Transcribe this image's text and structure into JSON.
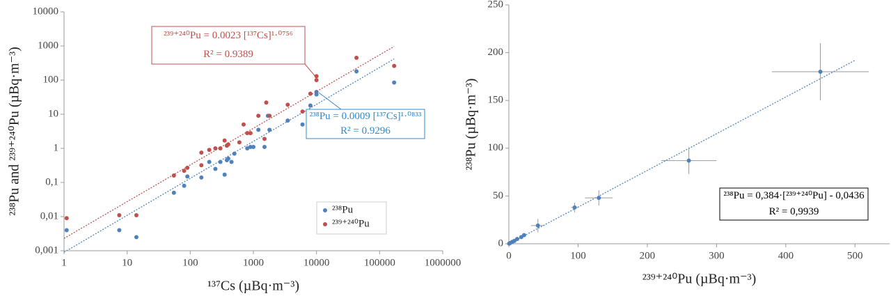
{
  "chart_data": [
    {
      "type": "scatter",
      "xscale": "log",
      "yscale": "log",
      "x_label": "¹³⁷Cs (µBq·m⁻³)",
      "y_label": "²³⁸Pu and ²³⁹⁺²⁴⁰Pu (µBq·m⁻³)",
      "xlim": [
        1,
        1000000
      ],
      "xticks": [
        1,
        10,
        100,
        1000,
        10000,
        100000,
        1000000
      ],
      "ylim": [
        0.001,
        10000
      ],
      "yticks": [
        {
          "value": 0.001,
          "label": "0,001"
        },
        {
          "value": 0.01,
          "label": "0,01"
        },
        {
          "value": 0.1,
          "label": "0,1"
        },
        1,
        10,
        100,
        1000,
        10000
      ],
      "legend": "lower right",
      "series": [
        {
          "name": "²³⁸Pu",
          "color": "#4f81bd",
          "x": [
            1.1,
            7.5,
            14,
            55,
            80,
            90,
            150,
            200,
            250,
            300,
            350,
            380,
            400,
            450,
            500,
            800,
            900,
            1000,
            1200,
            1500,
            1800,
            1700,
            3500,
            6000,
            8000,
            10000,
            10000,
            43000,
            170000
          ],
          "values": [
            0.004,
            0.004,
            0.0025,
            0.05,
            0.08,
            0.15,
            0.14,
            0.4,
            0.25,
            0.4,
            0.17,
            0.45,
            0.5,
            0.4,
            0.7,
            1.0,
            1.1,
            1.1,
            3.5,
            1.1,
            3.5,
            9,
            6.5,
            5,
            18,
            45,
            38,
            180,
            85
          ],
          "trendline": {
            "type": "power",
            "coef": 0.0009,
            "exp": 1.0833
          }
        },
        {
          "name": "²³⁹⁺²⁴⁰Pu",
          "color": "#c0504d",
          "x": [
            1.1,
            7.5,
            14,
            55,
            80,
            90,
            150,
            150,
            200,
            250,
            300,
            350,
            380,
            400,
            600,
            700,
            800,
            900,
            1200,
            1500,
            1600,
            1800,
            3500,
            6000,
            8000,
            10000,
            10000,
            43000,
            170000
          ],
          "values": [
            0.009,
            0.011,
            0.011,
            0.16,
            0.22,
            0.27,
            0.75,
            0.32,
            0.9,
            1.0,
            1.0,
            1.7,
            1.2,
            1.3,
            1.5,
            5,
            2.8,
            2.8,
            9,
            1.9,
            22,
            9,
            19,
            12,
            40,
            130,
            100,
            450,
            260
          ],
          "trendline": {
            "type": "power",
            "coef": 0.0023,
            "exp": 1.0756
          }
        }
      ],
      "annotations": [
        {
          "lines": [
            "²³⁹⁺²⁴⁰Pu = 0.0023 [¹³⁷Cs]¹·⁰⁷⁵⁶",
            "R² = 0.9389"
          ],
          "color": "#c0504d"
        },
        {
          "lines": [
            "²³⁸Pu = 0.0009 [¹³⁷Cs]¹·⁰⁸³³",
            "R² = 0.9296"
          ],
          "color": "#2e8bd0"
        }
      ]
    },
    {
      "type": "scatter",
      "x_label": "²³⁹⁺²⁴⁰Pu (µBq·m⁻³)",
      "y_label": "²³⁸Pu (µBq·m⁻³)",
      "xlim": [
        0,
        550
      ],
      "xticks": [
        0,
        100,
        200,
        300,
        400,
        500
      ],
      "ylim": [
        0,
        250
      ],
      "yticks": [
        0,
        50,
        100,
        150,
        200,
        250
      ],
      "series": [
        {
          "color": "#4f81bd",
          "x": [
            0.5,
            2,
            5,
            8,
            12,
            18,
            22,
            42,
            95,
            130,
            260,
            450
          ],
          "values": [
            0.2,
            0.8,
            2,
            3,
            5,
            7,
            9,
            19,
            38,
            48,
            87,
            180
          ],
          "xerr": [
            0,
            0,
            0,
            0,
            1,
            1,
            2,
            10,
            5,
            20,
            40,
            70
          ],
          "yerr": [
            0,
            0,
            0,
            0,
            1,
            1,
            1,
            7,
            5,
            8,
            14,
            30
          ],
          "trendline": {
            "type": "linear",
            "slope": 0.384,
            "intercept": -0.0436
          }
        }
      ],
      "annotations": [
        {
          "lines": [
            "²³⁸Pu = 0,384·[²³⁹⁺²⁴⁰Pu] - 0,0436",
            "R² = 0,9939"
          ],
          "color": "#000000"
        }
      ]
    }
  ]
}
